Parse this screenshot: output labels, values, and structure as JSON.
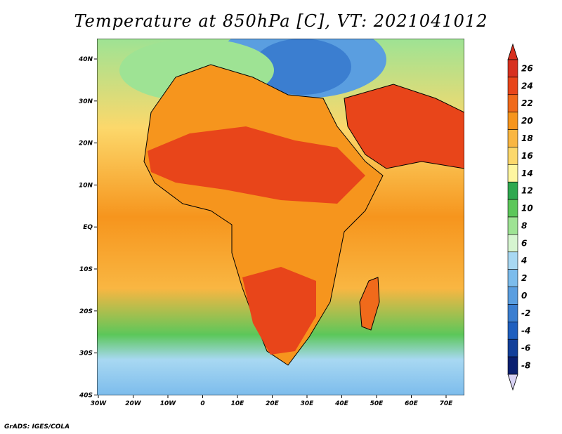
{
  "title": "Temperature at 850hPa [C], VT: 2021041012",
  "credit": "GrADS: IGES/COLA",
  "map": {
    "variable": "Temperature at 850hPa",
    "units": "C",
    "valid_time": "2021041012",
    "lon_labels": [
      "30W",
      "20W",
      "10W",
      "0",
      "10E",
      "20E",
      "30E",
      "40E",
      "50E",
      "60E",
      "70E"
    ],
    "lat_labels": [
      "40N",
      "30N",
      "20N",
      "10N",
      "EQ",
      "10S",
      "20S",
      "30S",
      "40S"
    ]
  },
  "colorbar": {
    "labels": [
      "26",
      "24",
      "22",
      "20",
      "18",
      "16",
      "14",
      "12",
      "10",
      "8",
      "6",
      "4",
      "2",
      "0",
      "-2",
      "-4",
      "-6",
      "-8"
    ],
    "colors": [
      "#d7301f",
      "#e8451a",
      "#f06a1b",
      "#f6951d",
      "#f9b642",
      "#fcd86b",
      "#fef6a0",
      "#2fa84f",
      "#5cc75a",
      "#9ee394",
      "#d6f5d0",
      "#a8d8f2",
      "#7cbcec",
      "#5a9ee0",
      "#3b7ed0",
      "#1f5fbf",
      "#123f9a",
      "#0a1f70"
    ]
  }
}
